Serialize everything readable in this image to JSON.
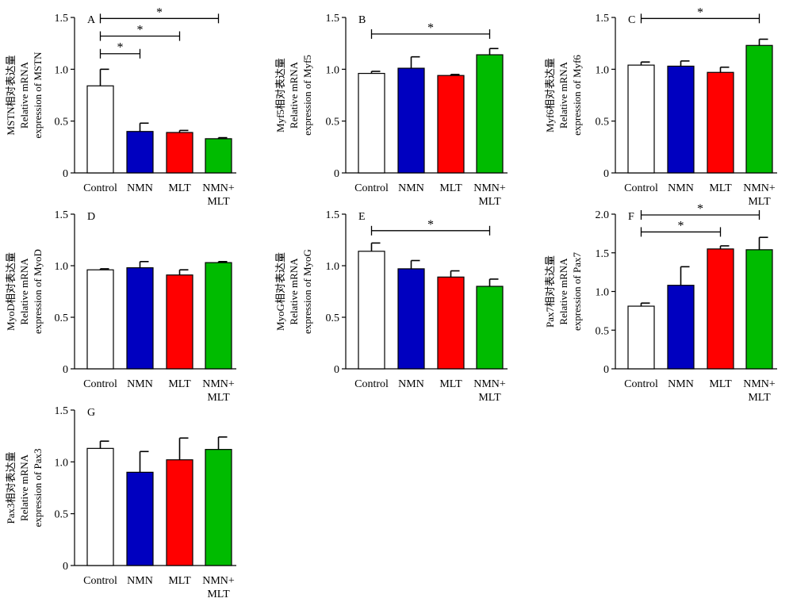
{
  "figure": {
    "background": "#ffffff",
    "colors": {
      "Control": "#ffffff",
      "NMN": "#0000c0",
      "MLT": "#ff0000",
      "NMN+MLT": "#00bb00",
      "axis": "#000000"
    }
  },
  "chart_data": [
    {
      "panel": "A",
      "type": "bar",
      "categories": [
        "Control",
        "NMN",
        "MLT",
        "NMN+MLT"
      ],
      "category_lines": [
        [
          "Control"
        ],
        [
          "NMN"
        ],
        [
          "MLT"
        ],
        [
          "NMN+",
          "MLT"
        ]
      ],
      "values": [
        0.84,
        0.4,
        0.39,
        0.33
      ],
      "errors": [
        0.16,
        0.08,
        0.02,
        0.01
      ],
      "ylabel": [
        "MSTN相对表达量",
        "Relative mRNA",
        "expression of MSTN"
      ],
      "ylim": [
        0,
        1.5
      ],
      "yticks": [
        0,
        0.5,
        1.0,
        1.5
      ],
      "ytick_labels": [
        "0",
        "0.5",
        "1.0",
        "1.5"
      ],
      "significance": [
        {
          "from": 0,
          "to": 1,
          "label": "*",
          "y": 1.15
        },
        {
          "from": 0,
          "to": 2,
          "label": "*",
          "y": 1.32
        },
        {
          "from": 0,
          "to": 3,
          "label": "*",
          "y": 1.49
        }
      ]
    },
    {
      "panel": "B",
      "type": "bar",
      "categories": [
        "Control",
        "NMN",
        "MLT",
        "NMN+MLT"
      ],
      "category_lines": [
        [
          "Control"
        ],
        [
          "NMN"
        ],
        [
          "MLT"
        ],
        [
          "NMN+",
          "MLT"
        ]
      ],
      "values": [
        0.96,
        1.01,
        0.94,
        1.14
      ],
      "errors": [
        0.02,
        0.11,
        0.01,
        0.06
      ],
      "ylabel": [
        "Myf5相对表达量",
        "Relative mRNA",
        "expression of Myf5"
      ],
      "ylim": [
        0,
        1.5
      ],
      "yticks": [
        0,
        0.5,
        1.0,
        1.5
      ],
      "ytick_labels": [
        "0",
        "0.5",
        "1.0",
        "1.5"
      ],
      "significance": [
        {
          "from": 0,
          "to": 3,
          "label": "*",
          "y": 1.34
        }
      ]
    },
    {
      "panel": "C",
      "type": "bar",
      "categories": [
        "Control",
        "NMN",
        "MLT",
        "NMN+MLT"
      ],
      "category_lines": [
        [
          "Control"
        ],
        [
          "NMN"
        ],
        [
          "MLT"
        ],
        [
          "NMN+",
          "MLT"
        ]
      ],
      "values": [
        1.04,
        1.03,
        0.97,
        1.23
      ],
      "errors": [
        0.03,
        0.05,
        0.05,
        0.06
      ],
      "ylabel": [
        "Myf6相对表达量",
        "Relative mRNA",
        "expression of Myf6"
      ],
      "ylim": [
        0,
        1.5
      ],
      "yticks": [
        0,
        0.5,
        1.0,
        1.5
      ],
      "ytick_labels": [
        "0",
        "0.5",
        "1.0",
        "1.5"
      ],
      "significance": [
        {
          "from": 0,
          "to": 3,
          "label": "*",
          "y": 1.49
        }
      ]
    },
    {
      "panel": "D",
      "type": "bar",
      "categories": [
        "Control",
        "NMN",
        "MLT",
        "NMN+MLT"
      ],
      "category_lines": [
        [
          "Control"
        ],
        [
          "NMN"
        ],
        [
          "MLT"
        ],
        [
          "NMN+",
          "MLT"
        ]
      ],
      "values": [
        0.96,
        0.98,
        0.91,
        1.03
      ],
      "errors": [
        0.01,
        0.06,
        0.05,
        0.01
      ],
      "ylabel": [
        "MyoD相对表达量",
        "Relative mRNA",
        "expression of MyoD"
      ],
      "ylim": [
        0,
        1.5
      ],
      "yticks": [
        0,
        0.5,
        1.0,
        1.5
      ],
      "ytick_labels": [
        "0",
        "0.5",
        "1.0",
        "1.5"
      ],
      "significance": []
    },
    {
      "panel": "E",
      "type": "bar",
      "categories": [
        "Control",
        "NMN",
        "MLT",
        "NMN+MLT"
      ],
      "category_lines": [
        [
          "Control"
        ],
        [
          "NMN"
        ],
        [
          "MLT"
        ],
        [
          "NMN+",
          "MLT"
        ]
      ],
      "values": [
        1.14,
        0.97,
        0.89,
        0.8
      ],
      "errors": [
        0.08,
        0.08,
        0.06,
        0.07
      ],
      "ylabel": [
        "MyoG相对表达量",
        "Relative mRNA",
        "expression of MyoG"
      ],
      "ylim": [
        0,
        1.5
      ],
      "yticks": [
        0,
        0.5,
        1.0,
        1.5
      ],
      "ytick_labels": [
        "0",
        "0.5",
        "1.0",
        "1.5"
      ],
      "significance": [
        {
          "from": 0,
          "to": 3,
          "label": "*",
          "y": 1.34
        }
      ]
    },
    {
      "panel": "F",
      "type": "bar",
      "categories": [
        "Control",
        "NMN",
        "MLT",
        "NMN+MLT"
      ],
      "category_lines": [
        [
          "Control"
        ],
        [
          "NMN"
        ],
        [
          "MLT"
        ],
        [
          "NMN+",
          "MLT"
        ]
      ],
      "values": [
        0.81,
        1.08,
        1.55,
        1.54
      ],
      "errors": [
        0.04,
        0.24,
        0.04,
        0.16
      ],
      "ylabel": [
        "Pax7相对表达量",
        "Relative mRNA",
        "expression of Pax7"
      ],
      "ylim": [
        0,
        2.0
      ],
      "yticks": [
        0,
        0.5,
        1.0,
        1.5,
        2.0
      ],
      "ytick_labels": [
        "0",
        "0.5",
        "1.0",
        "1.5",
        "2.0"
      ],
      "significance": [
        {
          "from": 0,
          "to": 2,
          "label": "*",
          "y": 1.77
        },
        {
          "from": 0,
          "to": 3,
          "label": "*",
          "y": 1.99
        }
      ]
    },
    {
      "panel": "G",
      "type": "bar",
      "categories": [
        "Control",
        "NMN",
        "MLT",
        "NMN+MLT"
      ],
      "category_lines": [
        [
          "Control"
        ],
        [
          "NMN"
        ],
        [
          "MLT"
        ],
        [
          "NMN+",
          "MLT"
        ]
      ],
      "values": [
        1.13,
        0.9,
        1.02,
        1.12
      ],
      "errors": [
        0.07,
        0.2,
        0.21,
        0.12
      ],
      "ylabel": [
        "Pax3相对表达量",
        "Relative mRNA",
        "expression of Pax3"
      ],
      "ylim": [
        0,
        1.5
      ],
      "yticks": [
        0,
        0.5,
        1.0,
        1.5
      ],
      "ytick_labels": [
        "0",
        "0.5",
        "1.0",
        "1.5"
      ],
      "significance": []
    }
  ]
}
